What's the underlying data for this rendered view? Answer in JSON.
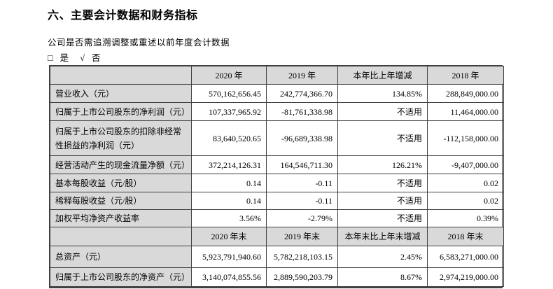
{
  "page": {
    "title": "六、主要会计数据和财务指标",
    "restate_question": "公司是否需追溯调整或重述以前年度会计数据",
    "checkbox_empty": "□",
    "yes_label": "是",
    "checkmark": "√",
    "no_label": "否"
  },
  "table": {
    "header_annual": [
      "",
      "2020 年",
      "2019 年",
      "本年比上年增减",
      "2018 年"
    ],
    "annual_rows": [
      [
        "营业收入（元）",
        "570,162,656.45",
        "242,774,366.70",
        "134.85%",
        "288,849,000.00"
      ],
      [
        "归属于上市公司股东的净利润（元）",
        "107,337,965.92",
        "-81,761,338.98",
        "不适用",
        "11,464,000.00"
      ],
      [
        "归属于上市公司股东的扣除非经常性损益的净利润（元）",
        "83,640,520.65",
        "-96,689,338.98",
        "不适用",
        "-112,158,000.00"
      ],
      [
        "经营活动产生的现金流量净额（元）",
        "372,214,126.31",
        "164,546,711.30",
        "126.21%",
        "-9,407,000.00"
      ],
      [
        "基本每股收益（元/股）",
        "0.14",
        "-0.11",
        "不适用",
        "0.02"
      ],
      [
        "稀释每股收益（元/股）",
        "0.14",
        "-0.11",
        "不适用",
        "0.02"
      ],
      [
        "加权平均净资产收益率",
        "3.56%",
        "-2.79%",
        "不适用",
        "0.39%"
      ]
    ],
    "header_yearend": [
      "",
      "2020 年末",
      "2019 年末",
      "本年末比上年末增减",
      "2018 年末"
    ],
    "yearend_rows": [
      [
        "总资产（元）",
        "5,923,791,940.60",
        "5,782,218,103.15",
        "2.45%",
        "6,583,271,000.00"
      ],
      [
        "归属于上市公司股东的净资产（元）",
        "3,140,074,855.56",
        "2,889,590,203.79",
        "8.67%",
        "2,974,219,000.00"
      ]
    ]
  },
  "colors": {
    "header_bg": "#d9d9d9",
    "border": "#404040",
    "text": "#000000"
  }
}
